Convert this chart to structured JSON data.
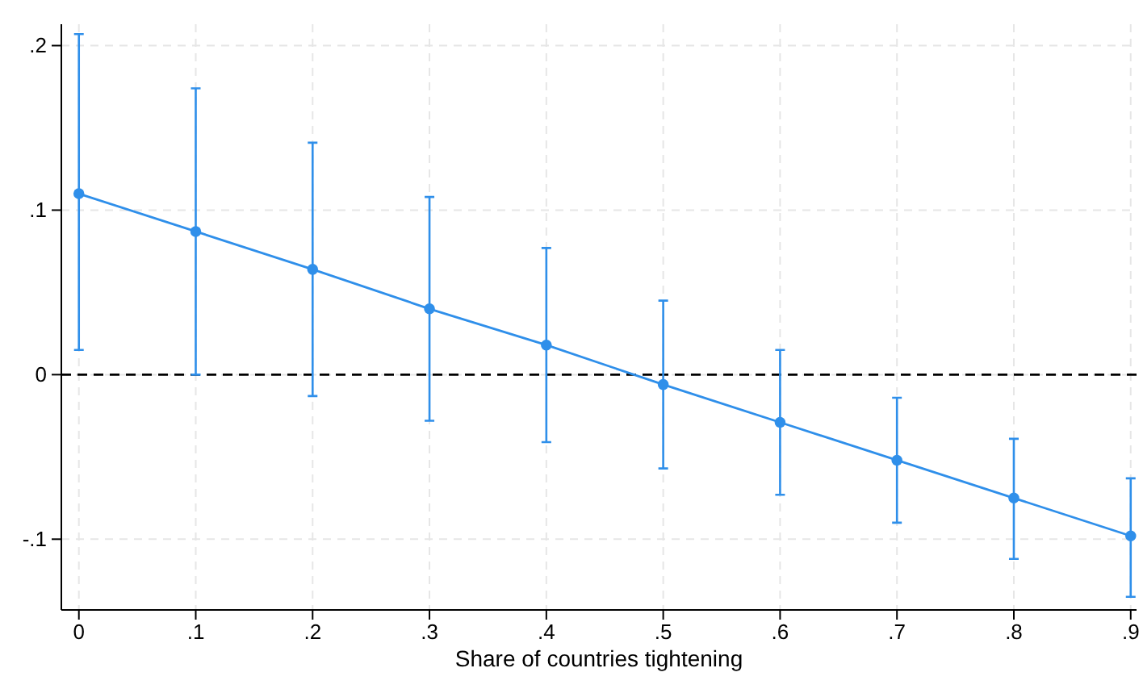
{
  "chart_data": {
    "type": "line",
    "xlabel": "Share of countries tightening",
    "x": [
      0,
      0.1,
      0.2,
      0.3,
      0.4,
      0.5,
      0.6,
      0.7,
      0.8,
      0.9
    ],
    "series": [
      {
        "color": "#2f8fea",
        "values": [
          0.11,
          0.087,
          0.064,
          0.04,
          0.018,
          -0.006,
          -0.029,
          -0.052,
          -0.075,
          -0.098
        ],
        "errors": [
          [
            0.015,
            0.207
          ],
          [
            0.0,
            0.174
          ],
          [
            -0.013,
            0.141
          ],
          [
            -0.028,
            0.108
          ],
          [
            -0.041,
            0.077
          ],
          [
            -0.057,
            0.045
          ],
          [
            -0.073,
            0.015
          ],
          [
            -0.09,
            -0.014
          ],
          [
            -0.112,
            -0.039
          ],
          [
            -0.135,
            -0.063
          ]
        ]
      }
    ],
    "xlim": [
      -0.015,
      0.905
    ],
    "ylim": [
      -0.143,
      0.213
    ],
    "xticks": [
      0,
      {
        "value": 0.1,
        "label": ".1"
      },
      {
        "value": 0.2,
        "label": ".2"
      },
      {
        "value": 0.3,
        "label": ".3"
      },
      {
        "value": 0.4,
        "label": ".4"
      },
      {
        "value": 0.5,
        "label": ".5"
      },
      {
        "value": 0.6,
        "label": ".6"
      },
      {
        "value": 0.7,
        "label": ".7"
      },
      {
        "value": 0.8,
        "label": ".8"
      },
      {
        "value": 0.9,
        "label": ".9"
      }
    ],
    "yticks": [
      {
        "value": -0.1,
        "label": "-.1"
      },
      0,
      {
        "value": 0.1,
        "label": ".1"
      },
      {
        "value": 0.2,
        "label": ".2"
      }
    ],
    "ref_lines": [
      {
        "axis": "y",
        "value": 0,
        "color": "#000000",
        "line_style": "dashed"
      }
    ],
    "grid": true,
    "marker": "circle",
    "line_style": "solid"
  }
}
